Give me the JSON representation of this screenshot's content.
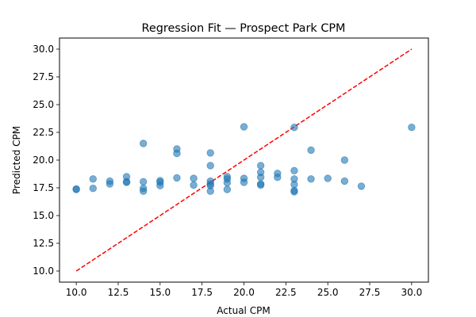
{
  "chart_data": {
    "type": "scatter",
    "title": "Regression Fit — Prospect Park CPM",
    "xlabel": "Actual CPM",
    "ylabel": "Predicted CPM",
    "xlim": [
      9.0,
      31.0
    ],
    "ylim": [
      9.0,
      31.0
    ],
    "xticks": [
      10.0,
      12.5,
      15.0,
      17.5,
      20.0,
      22.5,
      25.0,
      27.5,
      30.0
    ],
    "yticks": [
      10.0,
      12.5,
      15.0,
      17.5,
      20.0,
      22.5,
      25.0,
      27.5,
      30.0
    ],
    "grid": false,
    "legend": "none",
    "colors": {
      "points": "#1f77b4",
      "reference_line": "#ff0000"
    },
    "reference_line": {
      "style": "dashed",
      "from": [
        10.0,
        10.0
      ],
      "to": [
        30.0,
        30.0
      ]
    },
    "points": [
      {
        "x": 10,
        "y": 17.35
      },
      {
        "x": 10,
        "y": 17.4
      },
      {
        "x": 11,
        "y": 18.3
      },
      {
        "x": 11,
        "y": 17.45
      },
      {
        "x": 12,
        "y": 18.1
      },
      {
        "x": 12,
        "y": 17.85
      },
      {
        "x": 13,
        "y": 18.5
      },
      {
        "x": 13,
        "y": 18.05
      },
      {
        "x": 13,
        "y": 18.0
      },
      {
        "x": 14,
        "y": 21.5
      },
      {
        "x": 14,
        "y": 18.05
      },
      {
        "x": 14,
        "y": 17.45
      },
      {
        "x": 14,
        "y": 17.2
      },
      {
        "x": 15,
        "y": 18.15
      },
      {
        "x": 15,
        "y": 18.0
      },
      {
        "x": 15,
        "y": 17.7
      },
      {
        "x": 16,
        "y": 21.0
      },
      {
        "x": 16,
        "y": 20.6
      },
      {
        "x": 16,
        "y": 18.4
      },
      {
        "x": 17,
        "y": 18.35
      },
      {
        "x": 17,
        "y": 17.75
      },
      {
        "x": 18,
        "y": 20.65
      },
      {
        "x": 18,
        "y": 19.5
      },
      {
        "x": 18,
        "y": 18.1
      },
      {
        "x": 18,
        "y": 17.85
      },
      {
        "x": 18,
        "y": 17.7
      },
      {
        "x": 18,
        "y": 17.2
      },
      {
        "x": 19,
        "y": 18.5
      },
      {
        "x": 19,
        "y": 18.3
      },
      {
        "x": 19,
        "y": 17.95
      },
      {
        "x": 19,
        "y": 17.35
      },
      {
        "x": 20,
        "y": 23.0
      },
      {
        "x": 20,
        "y": 18.35
      },
      {
        "x": 20,
        "y": 18.0
      },
      {
        "x": 21,
        "y": 19.5
      },
      {
        "x": 21,
        "y": 18.9
      },
      {
        "x": 21,
        "y": 18.45
      },
      {
        "x": 21,
        "y": 17.85
      },
      {
        "x": 21,
        "y": 17.75
      },
      {
        "x": 22,
        "y": 18.8
      },
      {
        "x": 22,
        "y": 18.45
      },
      {
        "x": 23,
        "y": 22.95
      },
      {
        "x": 23,
        "y": 19.05
      },
      {
        "x": 23,
        "y": 18.3
      },
      {
        "x": 23,
        "y": 17.8
      },
      {
        "x": 23,
        "y": 17.25
      },
      {
        "x": 23,
        "y": 17.15
      },
      {
        "x": 24,
        "y": 20.9
      },
      {
        "x": 24,
        "y": 18.3
      },
      {
        "x": 25,
        "y": 18.35
      },
      {
        "x": 26,
        "y": 20.0
      },
      {
        "x": 26,
        "y": 18.1
      },
      {
        "x": 27,
        "y": 17.65
      },
      {
        "x": 30,
        "y": 22.95
      }
    ]
  }
}
